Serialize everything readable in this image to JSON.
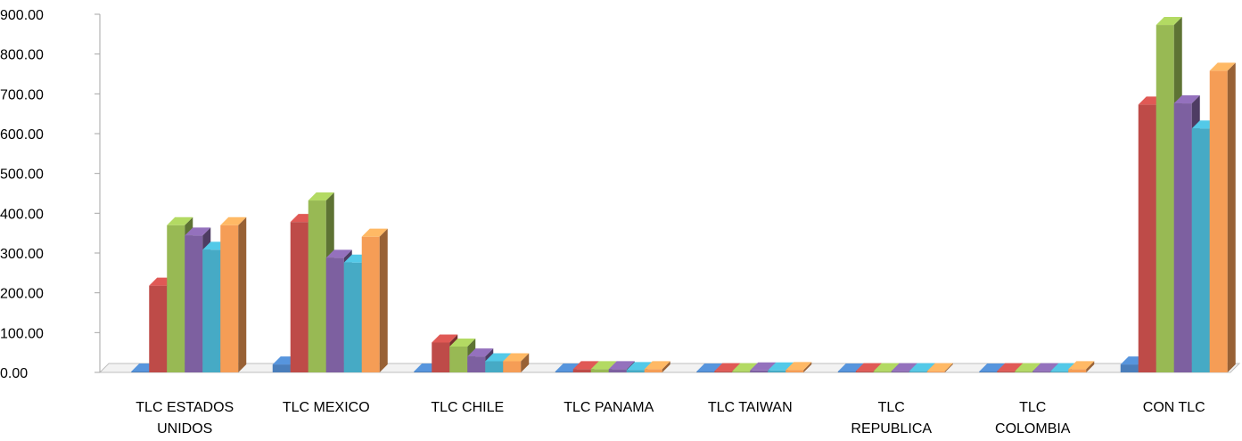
{
  "chart_data": {
    "type": "bar",
    "title": "",
    "xlabel": "",
    "ylabel": "",
    "ylim": [
      0,
      900
    ],
    "yticks": [
      "0.00",
      "100.00",
      "200.00",
      "300.00",
      "400.00",
      "500.00",
      "600.00",
      "700.00",
      "800.00",
      "900.00"
    ],
    "categories": [
      [
        "TLC ESTADOS",
        "UNIDOS"
      ],
      [
        "TLC MEXICO"
      ],
      [
        "TLC CHILE"
      ],
      [
        "TLC PANAMA"
      ],
      [
        "TLC TAIWAN"
      ],
      [
        "TLC",
        "REPUBLICA"
      ],
      [
        "TLC",
        "COLOMBIA"
      ],
      [
        "CON TLC"
      ]
    ],
    "series": [
      {
        "color": "#4A7EBB",
        "values": [
          2,
          20,
          2,
          1,
          1,
          1,
          1,
          20
        ]
      },
      {
        "color": "#BE4B48",
        "values": [
          218,
          378,
          75,
          8,
          3,
          3,
          3,
          673
        ]
      },
      {
        "color": "#98B954",
        "values": [
          370,
          432,
          65,
          8,
          3,
          3,
          3,
          873
        ]
      },
      {
        "color": "#7D60A0",
        "values": [
          344,
          288,
          40,
          8,
          5,
          3,
          3,
          676
        ]
      },
      {
        "color": "#46AAC5",
        "values": [
          308,
          276,
          28,
          6,
          5,
          3,
          3,
          613
        ]
      },
      {
        "color": "#F59D56",
        "values": [
          370,
          341,
          28,
          8,
          6,
          3,
          8,
          758
        ]
      }
    ],
    "grid": false,
    "legend": "none"
  }
}
